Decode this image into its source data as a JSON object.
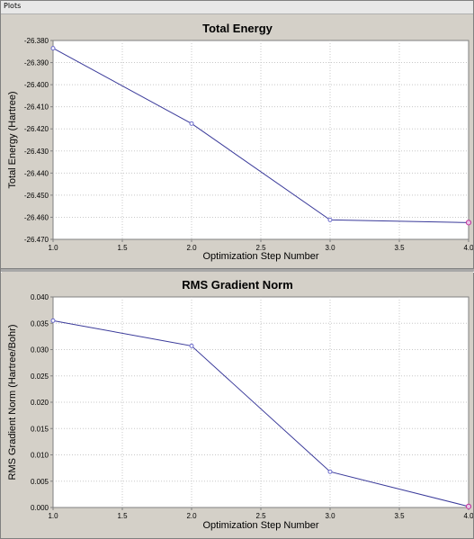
{
  "window": {
    "title": "Plots"
  },
  "chart_data": [
    {
      "type": "line",
      "title": "Total Energy",
      "xlabel": "Optimization Step Number",
      "ylabel": "Total Energy (Hartree)",
      "xlim": [
        1.0,
        4.0
      ],
      "ylim": [
        -26.47,
        -26.38
      ],
      "x_ticks": [
        "1.0",
        "1.5",
        "2.0",
        "2.5",
        "3.0",
        "3.5",
        "4.0"
      ],
      "y_ticks": [
        "-26.380",
        "-26.390",
        "-26.400",
        "-26.410",
        "-26.420",
        "-26.430",
        "-26.440",
        "-26.450",
        "-26.460",
        "-26.470"
      ],
      "grid": true,
      "x": [
        1,
        2,
        3,
        4
      ],
      "values": [
        -26.3835,
        -26.4176,
        -26.4612,
        -26.4624
      ],
      "line_color": "#3a3a9a",
      "marker_color": "#6a6acc",
      "last_marker_color": "#c0309a"
    },
    {
      "type": "line",
      "title": "RMS Gradient Norm",
      "xlabel": "Optimization Step Number",
      "ylabel": "RMS Gradient Norm (Hartree/Bohr)",
      "xlim": [
        1.0,
        4.0
      ],
      "ylim": [
        0.0,
        0.04
      ],
      "x_ticks": [
        "1.0",
        "1.5",
        "2.0",
        "2.5",
        "3.0",
        "3.5",
        "4.0"
      ],
      "y_ticks": [
        "0.000",
        "0.005",
        "0.010",
        "0.015",
        "0.020",
        "0.025",
        "0.030",
        "0.035",
        "0.040"
      ],
      "grid": true,
      "x": [
        1,
        2,
        3,
        4
      ],
      "values": [
        0.0355,
        0.0307,
        0.0068,
        0.0002
      ],
      "line_color": "#3a3a9a",
      "marker_color": "#6a6acc",
      "last_marker_color": "#c0309a"
    }
  ]
}
